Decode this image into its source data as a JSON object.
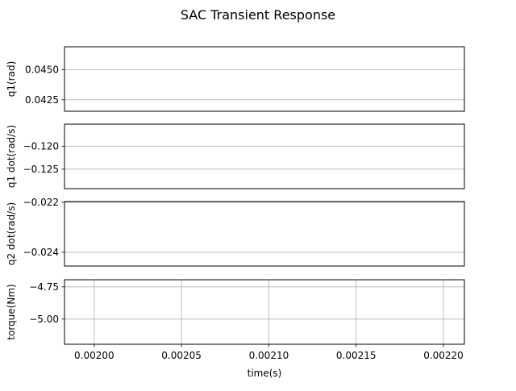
{
  "figure": {
    "title": "SAC Transient Response"
  },
  "chart_data": [
    {
      "type": "line",
      "ylabel": "q1(rad)",
      "ylim": [
        0.04155,
        0.0469
      ],
      "yticks": [
        0.0425,
        0.045
      ],
      "ytick_labels": [
        "0.0425",
        "0.0450"
      ],
      "xlim": [
        0.001983,
        0.002212
      ],
      "show_x_ticklabels": false,
      "show_x_grid": false,
      "grid": true,
      "series": []
    },
    {
      "type": "line",
      "ylabel": "q1 dot(rad/s)",
      "ylim": [
        -0.12925,
        -0.1152
      ],
      "yticks": [
        -0.12,
        -0.125
      ],
      "ytick_labels": [
        "−0.120",
        "−0.125"
      ],
      "xlim": [
        0.001983,
        0.002212
      ],
      "show_x_ticklabels": false,
      "show_x_grid": false,
      "grid": true,
      "series": []
    },
    {
      "type": "line",
      "ylabel": "q2 dot(rad/s)",
      "ylim": [
        -0.02455,
        -0.02197
      ],
      "yticks": [
        -0.022,
        -0.024
      ],
      "ytick_labels": [
        "−0.022",
        "−0.024"
      ],
      "xlim": [
        0.001983,
        0.002212
      ],
      "show_x_ticklabels": false,
      "show_x_grid": false,
      "grid": true,
      "series": []
    },
    {
      "type": "line",
      "ylabel": "torque(Nm)",
      "xlabel": "time(s)",
      "ylim": [
        -5.195,
        -4.695
      ],
      "yticks": [
        -4.75,
        -5.0
      ],
      "ytick_labels": [
        "−4.75",
        "−5.00"
      ],
      "xlim": [
        0.001983,
        0.002212
      ],
      "xticks": [
        0.002,
        0.00205,
        0.0021,
        0.00215,
        0.0022
      ],
      "xtick_labels": [
        "0.00200",
        "0.00205",
        "0.00210",
        "0.00215",
        "0.00220"
      ],
      "show_x_ticklabels": true,
      "show_x_grid": true,
      "grid": true,
      "series": []
    }
  ],
  "colors": {
    "grid": "#b0b0b0",
    "axes": "#000000",
    "background": "#ffffff"
  }
}
